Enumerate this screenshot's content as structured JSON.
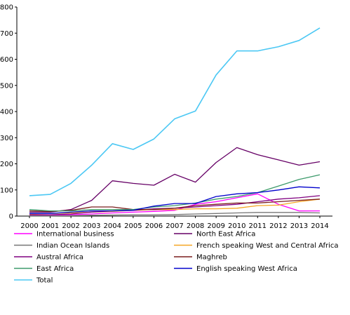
{
  "chart_data": {
    "type": "line",
    "title": "",
    "xlabel": "",
    "ylabel": "",
    "x": [
      "2000",
      "2001",
      "2002",
      "2003",
      "2004",
      "2005",
      "2006",
      "2007",
      "2008",
      "2009",
      "2010",
      "2011",
      "2012",
      "2013",
      "2014"
    ],
    "ylim": [
      0,
      800
    ],
    "yticks": [
      "0",
      "100",
      "200",
      "300",
      "400",
      "500",
      "600",
      "700",
      "800"
    ],
    "grid": false,
    "legend_position": "bottom",
    "series": [
      {
        "name": "International business",
        "color": "#ff00ff",
        "values": [
          2,
          3,
          5,
          8,
          12,
          15,
          18,
          22,
          45,
          55,
          70,
          85,
          45,
          20,
          20
        ]
      },
      {
        "name": "North East Africa",
        "color": "#660066",
        "values": [
          15,
          15,
          25,
          60,
          135,
          125,
          118,
          160,
          130,
          205,
          262,
          235,
          215,
          195,
          208
        ]
      },
      {
        "name": "Indian Ocean Islands",
        "color": "#777777",
        "values": [
          1,
          1,
          2,
          3,
          4,
          5,
          5,
          6,
          8,
          10,
          12,
          14,
          14,
          14,
          12
        ]
      },
      {
        "name": "French speaking West and Central Africa",
        "color": "#f5a623",
        "values": [
          8,
          10,
          12,
          15,
          18,
          22,
          25,
          25,
          28,
          28,
          30,
          40,
          42,
          55,
          65
        ]
      },
      {
        "name": "Austral Africa",
        "color": "#800080",
        "values": [
          5,
          5,
          8,
          15,
          20,
          22,
          28,
          30,
          35,
          40,
          45,
          55,
          65,
          70,
          78
        ]
      },
      {
        "name": "Maghreb",
        "color": "#7b1e1e",
        "values": [
          20,
          18,
          22,
          35,
          35,
          25,
          25,
          30,
          40,
          45,
          50,
          50,
          55,
          60,
          65
        ]
      },
      {
        "name": "East Africa",
        "color": "#3c9a6b",
        "values": [
          25,
          20,
          20,
          25,
          25,
          25,
          35,
          40,
          50,
          65,
          75,
          90,
          115,
          140,
          158
        ]
      },
      {
        "name": "English speaking West Africa",
        "color": "#0000cc",
        "values": [
          10,
          10,
          15,
          20,
          20,
          22,
          38,
          48,
          48,
          75,
          85,
          90,
          100,
          112,
          108
        ]
      },
      {
        "name": "Total",
        "color": "#4cc8f4",
        "values": [
          78,
          83,
          125,
          195,
          277,
          255,
          295,
          372,
          402,
          540,
          632,
          632,
          648,
          672,
          720
        ]
      }
    ]
  }
}
